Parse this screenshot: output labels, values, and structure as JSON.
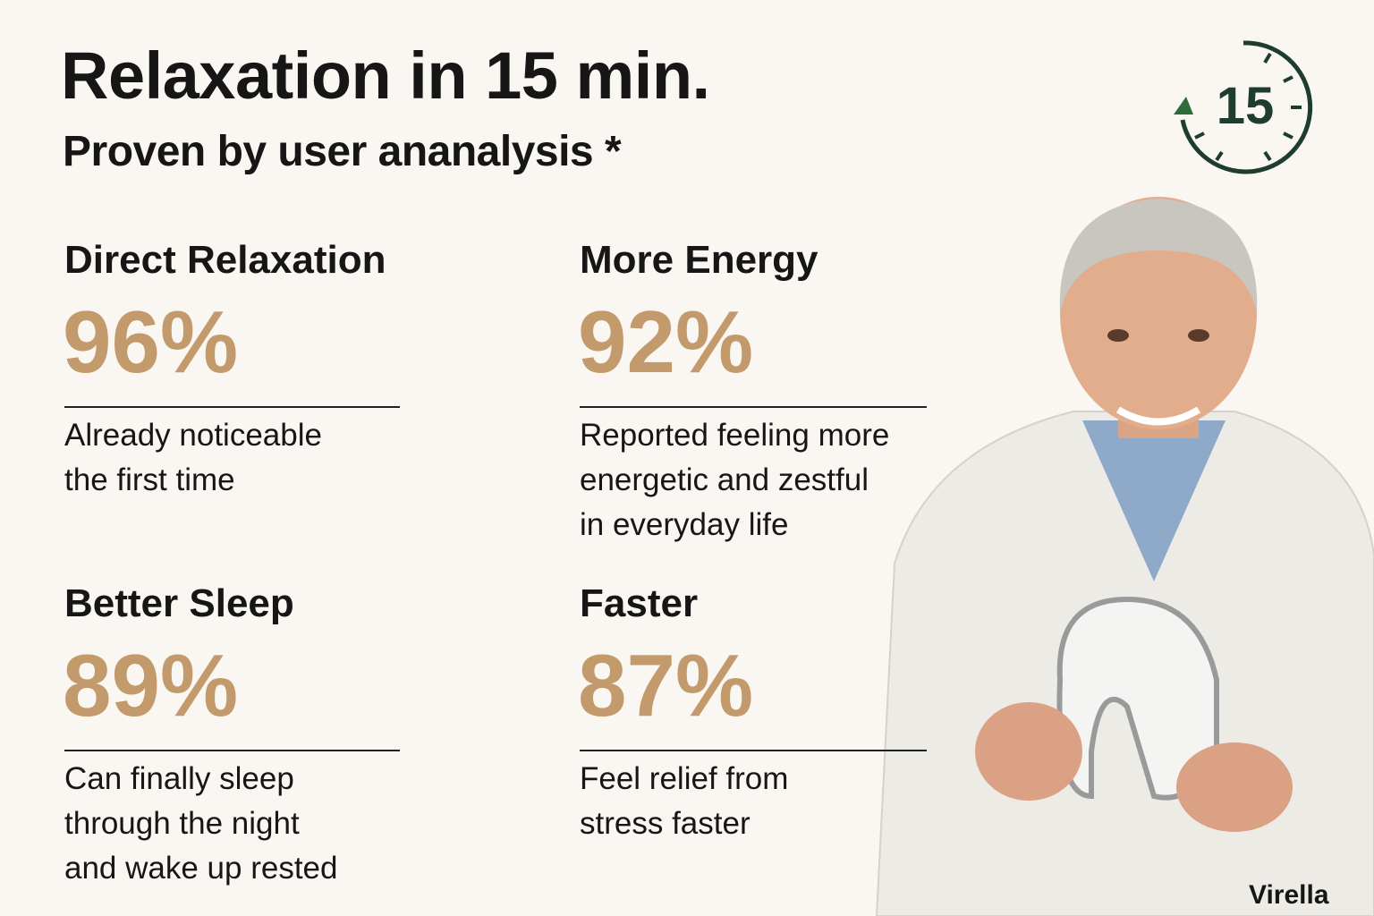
{
  "header": {
    "title": "Relaxation in 15 min.",
    "subtitle": "Proven by user ananalysis *",
    "timer": "15"
  },
  "stats": [
    {
      "heading": "Direct Relaxation",
      "percent": "96%",
      "description": [
        "Already noticeable",
        "the first time"
      ]
    },
    {
      "heading": "More Energy",
      "percent": "92%",
      "description": [
        "Reported feeling more",
        "energetic and zestful",
        "in everyday life"
      ]
    },
    {
      "heading": "Better Sleep",
      "percent": "89%",
      "description": [
        "Can finally sleep",
        "through the night",
        "and wake up rested"
      ]
    },
    {
      "heading": "Faster",
      "percent": "87%",
      "description": [
        "Feel relief from",
        "stress faster"
      ]
    }
  ],
  "brand": "Virella"
}
